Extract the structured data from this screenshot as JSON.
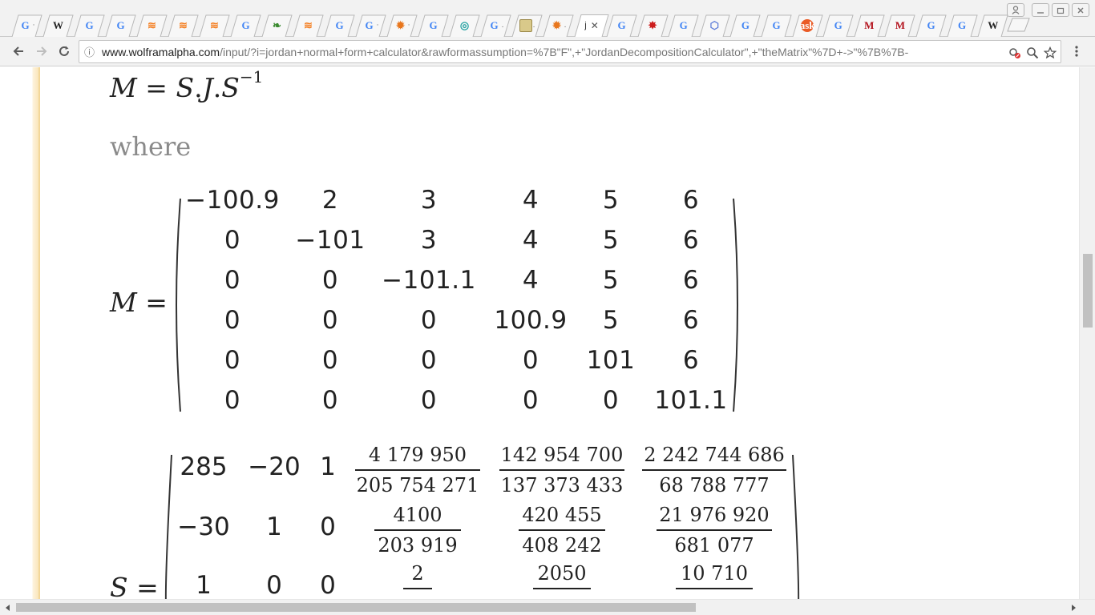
{
  "browser": {
    "tabs": [
      {
        "icon": "google-icon",
        "glyph": "G",
        "cls": "fav-g",
        "dot": "·"
      },
      {
        "icon": "wikipedia-icon",
        "glyph": "W",
        "cls": "fav-w",
        "dot": ""
      },
      {
        "icon": "google-icon",
        "glyph": "G",
        "cls": "fav-g",
        "dot": ""
      },
      {
        "icon": "google-icon",
        "glyph": "G",
        "cls": "fav-g",
        "dot": ""
      },
      {
        "icon": "stackoverflow-icon",
        "glyph": "≋",
        "cls": "fav-so",
        "dot": ""
      },
      {
        "icon": "stackoverflow-icon",
        "glyph": "≋",
        "cls": "fav-so",
        "dot": ""
      },
      {
        "icon": "stackoverflow-icon",
        "glyph": "≋",
        "cls": "fav-so",
        "dot": ""
      },
      {
        "icon": "google-icon",
        "glyph": "G",
        "cls": "fav-g",
        "dot": ""
      },
      {
        "icon": "leaf-icon",
        "glyph": "❧",
        "cls": "fav-leaf",
        "dot": ""
      },
      {
        "icon": "stackoverflow-icon",
        "glyph": "≋",
        "cls": "fav-so",
        "dot": ""
      },
      {
        "icon": "google-icon",
        "glyph": "G",
        "cls": "fav-g",
        "dot": ""
      },
      {
        "icon": "google-icon",
        "glyph": "G",
        "cls": "fav-g",
        "dot": "·"
      },
      {
        "icon": "wolfram-icon",
        "glyph": "✹",
        "cls": "fav-sun",
        "dot": "·"
      },
      {
        "icon": "google-icon",
        "glyph": "G",
        "cls": "fav-g",
        "dot": ""
      },
      {
        "icon": "globe-icon",
        "glyph": "◎",
        "cls": "fav-teal",
        "dot": ""
      },
      {
        "icon": "google-icon",
        "glyph": "G",
        "cls": "fav-g",
        "dot": "."
      },
      {
        "icon": "picture-icon",
        "glyph": "",
        "cls": "fav-pic",
        "dot": "."
      },
      {
        "icon": "wolfram-icon",
        "glyph": "✹",
        "cls": "fav-sun",
        "dot": "."
      }
    ],
    "active_tab": {
      "label": "j",
      "close": "✕"
    },
    "tabs_after": [
      {
        "icon": "google-icon",
        "glyph": "G",
        "cls": "fav-g",
        "dot": ""
      },
      {
        "icon": "gear-red-icon",
        "glyph": "✸",
        "cls": "fav-red",
        "dot": ""
      },
      {
        "icon": "google-icon",
        "glyph": "G",
        "cls": "fav-g",
        "dot": ""
      },
      {
        "icon": "cube-icon",
        "glyph": "⬡",
        "cls": "fav-blue",
        "dot": ""
      },
      {
        "icon": "google-icon",
        "glyph": "G",
        "cls": "fav-g",
        "dot": ""
      },
      {
        "icon": "google-icon",
        "glyph": "G",
        "cls": "fav-g",
        "dot": ""
      },
      {
        "icon": "ask-icon",
        "glyph": "ask",
        "cls": "fav-ask",
        "dot": ""
      },
      {
        "icon": "google-icon",
        "glyph": "G",
        "cls": "fav-g",
        "dot": ""
      },
      {
        "icon": "m-logo-icon",
        "glyph": "M",
        "cls": "fav-m",
        "dot": ""
      },
      {
        "icon": "m-logo-icon",
        "glyph": "M",
        "cls": "fav-m",
        "dot": ""
      },
      {
        "icon": "google-icon",
        "glyph": "G",
        "cls": "fav-g",
        "dot": ""
      },
      {
        "icon": "google-icon",
        "glyph": "G",
        "cls": "fav-g",
        "dot": ""
      },
      {
        "icon": "wikipedia-icon",
        "glyph": "W",
        "cls": "fav-w",
        "dot": ""
      }
    ],
    "url_host": "www.wolframalpha.com",
    "url_rest": "/input/?i=jordan+normal+form+calculator&rawformassumption=%7B\"F\",+\"JordanDecompositionCalculator\",+\"theMatrix\"%7D+->\"%7B%7B-",
    "info_icon": "ⓘ"
  },
  "content": {
    "formula": {
      "m": "M",
      "eq": "=",
      "s": "S",
      "dot1": ".",
      "j": "J",
      "dot2": ".",
      "s2": "S",
      "exp": "−1"
    },
    "where": "where",
    "m_label": "M =",
    "s_label": "S =",
    "matrix_m": [
      [
        "−100.9",
        "2",
        "3",
        "4",
        "5",
        "6"
      ],
      [
        "0",
        "−101",
        "3",
        "4",
        "5",
        "6"
      ],
      [
        "0",
        "0",
        "−101.1",
        "4",
        "5",
        "6"
      ],
      [
        "0",
        "0",
        "0",
        "100.9",
        "5",
        "6"
      ],
      [
        "0",
        "0",
        "0",
        "0",
        "101",
        "6"
      ],
      [
        "0",
        "0",
        "0",
        "0",
        "0",
        "101.1"
      ]
    ],
    "matrix_s": [
      {
        "ints": [
          "285",
          "−20",
          "1"
        ],
        "fracs": [
          [
            "4 179 950",
            "205 754 271"
          ],
          [
            "142 954 700",
            "137 373 433"
          ],
          [
            "2 242 744 686",
            "68 788 777"
          ]
        ]
      },
      {
        "ints": [
          "−30",
          "1",
          "0"
        ],
        "fracs": [
          [
            "4100",
            "203 919"
          ],
          [
            "420 455",
            "408 242"
          ],
          [
            "21 976 920",
            "681 077"
          ]
        ]
      },
      {
        "ints": [
          "1",
          "0",
          "0"
        ],
        "fracs": [
          [
            "2",
            ""
          ],
          [
            "2050",
            ""
          ],
          [
            "10 710",
            ""
          ]
        ]
      }
    ]
  }
}
